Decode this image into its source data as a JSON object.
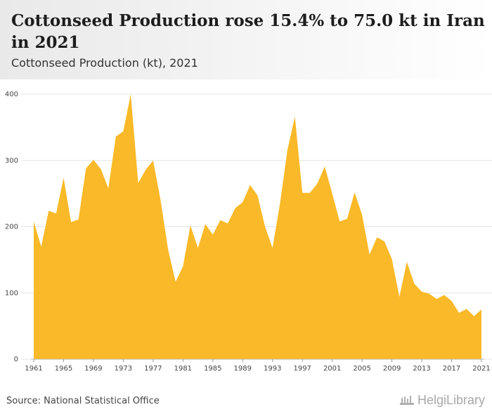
{
  "header": {
    "title": "Cottonseed Production rose 15.4% to 75.0 kt in Iran in 2021",
    "subtitle": "Cottonseed Production (kt), 2021"
  },
  "footer": {
    "source": "Source: National Statistical Office",
    "brand": "HelgiLibrary",
    "brand_icon": "helgi-library-logo-icon"
  },
  "chart_data": {
    "type": "area",
    "title": "Cottonseed Production rose 15.4% to 75.0 kt in Iran in 2021",
    "subtitle": "Cottonseed Production (kt), 2021",
    "xlabel": "",
    "ylabel": "",
    "xlim": [
      1961,
      2021
    ],
    "ylim": [
      0,
      400
    ],
    "yticks": [
      0,
      100,
      200,
      300,
      400
    ],
    "xticks": [
      1961,
      1965,
      1969,
      1973,
      1977,
      1981,
      1985,
      1989,
      1993,
      1997,
      2001,
      2005,
      2009,
      2013,
      2017,
      2021
    ],
    "grid": true,
    "color": "#f9b928",
    "series": [
      {
        "x": [
          1961,
          1962,
          1963,
          1964,
          1965,
          1966,
          1967,
          1968,
          1969,
          1970,
          1971,
          1972,
          1973,
          1974,
          1975,
          1976,
          1977,
          1978,
          1979,
          1980,
          1981,
          1982,
          1983,
          1984,
          1985,
          1986,
          1987,
          1988,
          1989,
          1990,
          1991,
          1992,
          1993,
          1994,
          1995,
          1996,
          1997,
          1998,
          1999,
          2000,
          2001,
          2002,
          2003,
          2004,
          2005,
          2006,
          2007,
          2008,
          2009,
          2010,
          2011,
          2012,
          2013,
          2014,
          2015,
          2016,
          2017,
          2018,
          2019,
          2020,
          2021
        ],
        "values": [
          208,
          170,
          224,
          220,
          274,
          207,
          211,
          288,
          301,
          287,
          258,
          336,
          344,
          400,
          266,
          286,
          300,
          240,
          166,
          117,
          140,
          202,
          168,
          204,
          188,
          210,
          205,
          228,
          237,
          263,
          247,
          200,
          168,
          235,
          316,
          366,
          251,
          251,
          265,
          291,
          250,
          208,
          212,
          252,
          218,
          158,
          184,
          178,
          151,
          94,
          147,
          114,
          102,
          99,
          91,
          97,
          88,
          70,
          76,
          65,
          75
        ]
      }
    ]
  }
}
